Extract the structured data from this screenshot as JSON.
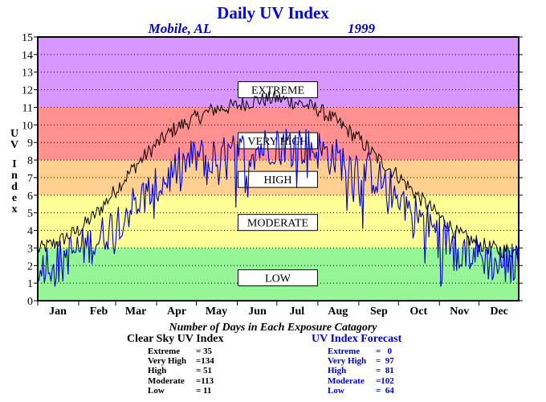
{
  "title": "Daily UV Index",
  "location": "Mobile, AL",
  "year": "1999",
  "ylabel": "UV Index",
  "colors": {
    "extreme": "#d896ff",
    "very_high": "#ff9090",
    "high": "#ffd090",
    "moderate": "#ffff96",
    "low": "#96f596",
    "clear_sky_line": "#000000",
    "forecast_line": "#0000cc"
  },
  "categories": [
    {
      "label": "EXTREME",
      "from": 11,
      "to": 15
    },
    {
      "label": "VERY HIGH",
      "from": 8,
      "to": 11
    },
    {
      "label": "HIGH",
      "from": 6,
      "to": 8
    },
    {
      "label": "MODERATE",
      "from": 3,
      "to": 6
    },
    {
      "label": "LOW",
      "from": 0,
      "to": 3
    }
  ],
  "chart_data": {
    "type": "line",
    "title": "Daily UV Index",
    "subtitle": [
      "Mobile, AL",
      "1999"
    ],
    "ylabel": "UV Index",
    "ylim": [
      0,
      15
    ],
    "yticks": [
      0,
      1,
      2,
      3,
      4,
      5,
      6,
      7,
      8,
      9,
      10,
      11,
      12,
      13,
      14,
      15
    ],
    "xlim": [
      1,
      365
    ],
    "months": [
      "Jan",
      "Feb",
      "Mar",
      "Apr",
      "May",
      "Jun",
      "Jul",
      "Aug",
      "Sep",
      "Oct",
      "Nov",
      "Dec"
    ],
    "grid": true,
    "series": [
      {
        "name": "Clear Sky UV Index",
        "color": "#000000",
        "days": [
          1,
          15,
          32,
          46,
          60,
          74,
          91,
          105,
          121,
          135,
          152,
          166,
          182,
          196,
          213,
          227,
          244,
          258,
          274,
          288,
          305,
          319,
          335,
          349,
          365
        ],
        "values": [
          2.9,
          3.3,
          4.0,
          5.0,
          6.3,
          7.6,
          8.9,
          9.8,
          10.4,
          10.9,
          11.1,
          11.4,
          11.5,
          11.3,
          10.9,
          10.2,
          9.2,
          8.1,
          7.1,
          6.0,
          4.8,
          3.8,
          3.2,
          2.9,
          2.8
        ]
      },
      {
        "name": "UV Index Forecast",
        "color": "#0000cc",
        "days": [
          1,
          15,
          32,
          46,
          60,
          74,
          91,
          105,
          121,
          135,
          152,
          166,
          182,
          196,
          213,
          227,
          244,
          258,
          274,
          288,
          305,
          319,
          335,
          349,
          365
        ],
        "values": [
          2.1,
          2.3,
          2.9,
          3.4,
          4.5,
          5.5,
          6.4,
          7.4,
          8.2,
          8.0,
          8.4,
          8.6,
          9.0,
          8.9,
          8.6,
          8.1,
          7.6,
          7.0,
          6.0,
          4.9,
          3.8,
          3.1,
          2.6,
          2.0,
          2.2
        ]
      }
    ]
  },
  "stats": {
    "heading": "Number of Days in Each Exposure Catagory",
    "clear_sky": {
      "title": "Clear Sky UV Index",
      "rows": [
        {
          "label": "Extreme",
          "value": "35"
        },
        {
          "label": "Very High",
          "value": "134"
        },
        {
          "label": "High",
          "value": "51"
        },
        {
          "label": "Moderate",
          "value": "113"
        },
        {
          "label": "Low",
          "value": "11"
        }
      ]
    },
    "forecast": {
      "title": "UV Index Forecast",
      "rows": [
        {
          "label": "Extreme",
          "value": "0"
        },
        {
          "label": "Very High",
          "value": "97"
        },
        {
          "label": "High",
          "value": "81"
        },
        {
          "label": "Moderate",
          "value": "102"
        },
        {
          "label": "Low",
          "value": "64"
        }
      ]
    }
  }
}
